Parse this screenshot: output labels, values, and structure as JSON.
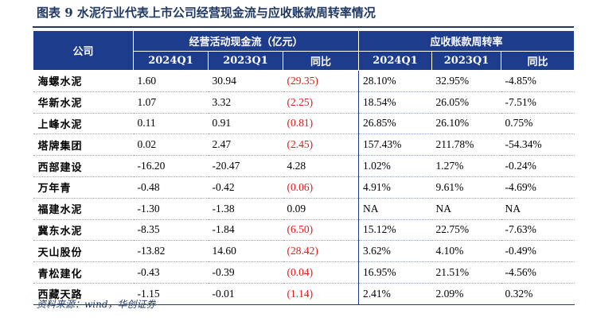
{
  "title": "图表 9  水泥行业代表上市公司经营现金流与应收账款周转率情况",
  "table": {
    "company_header": "公司",
    "group_headers": [
      "经营活动现金流（亿元）",
      "应收账款周转率"
    ],
    "sub_headers": [
      "2024Q1",
      "2023Q1",
      "同比",
      "2024Q1",
      "2023Q1",
      "同比"
    ],
    "rows": [
      {
        "company": "海螺水泥",
        "cf_2024": "1.60",
        "cf_2023": "30.94",
        "cf_yoy": "(29.35)",
        "cf_neg": true,
        "rt_2024": "28.10%",
        "rt_2023": "32.95%",
        "rt_yoy": "-4.85%"
      },
      {
        "company": "华新水泥",
        "cf_2024": "1.07",
        "cf_2023": "3.32",
        "cf_yoy": "(2.25)",
        "cf_neg": true,
        "rt_2024": "18.54%",
        "rt_2023": "26.05%",
        "rt_yoy": "-7.51%"
      },
      {
        "company": "上峰水泥",
        "cf_2024": "0.11",
        "cf_2023": "0.91",
        "cf_yoy": "(0.81)",
        "cf_neg": true,
        "rt_2024": "26.85%",
        "rt_2023": "26.10%",
        "rt_yoy": "0.75%"
      },
      {
        "company": "塔牌集团",
        "cf_2024": "0.02",
        "cf_2023": "2.47",
        "cf_yoy": "(2.45)",
        "cf_neg": true,
        "rt_2024": "157.43%",
        "rt_2023": "211.78%",
        "rt_yoy": "-54.34%"
      },
      {
        "company": "西部建设",
        "cf_2024": "-16.20",
        "cf_2023": "-20.47",
        "cf_yoy": "4.28",
        "cf_neg": false,
        "rt_2024": "1.02%",
        "rt_2023": "1.27%",
        "rt_yoy": "-0.24%"
      },
      {
        "company": "万年青",
        "cf_2024": "-0.48",
        "cf_2023": "-0.42",
        "cf_yoy": "(0.06)",
        "cf_neg": true,
        "rt_2024": "4.91%",
        "rt_2023": "9.61%",
        "rt_yoy": "-4.69%"
      },
      {
        "company": "福建水泥",
        "cf_2024": "-1.30",
        "cf_2023": "-1.38",
        "cf_yoy": "0.09",
        "cf_neg": false,
        "rt_2024": "NA",
        "rt_2023": "NA",
        "rt_yoy": "NA"
      },
      {
        "company": "冀东水泥",
        "cf_2024": "-8.35",
        "cf_2023": "-1.84",
        "cf_yoy": "(6.50)",
        "cf_neg": true,
        "rt_2024": "15.12%",
        "rt_2023": "22.75%",
        "rt_yoy": "-7.63%"
      },
      {
        "company": "天山股份",
        "cf_2024": "-13.82",
        "cf_2023": "14.60",
        "cf_yoy": "(28.42)",
        "cf_neg": true,
        "rt_2024": "3.62%",
        "rt_2023": "4.10%",
        "rt_yoy": "-0.49%"
      },
      {
        "company": "青松建化",
        "cf_2024": "-0.43",
        "cf_2023": "-0.39",
        "cf_yoy": "(0.04)",
        "cf_neg": true,
        "rt_2024": "16.95%",
        "rt_2023": "21.51%",
        "rt_yoy": "-4.56%"
      },
      {
        "company": "西藏天路",
        "cf_2024": "-1.15",
        "cf_2023": "-0.01",
        "cf_yoy": "(1.14)",
        "cf_neg": true,
        "rt_2024": "2.41%",
        "rt_2023": "2.09%",
        "rt_yoy": "0.32%"
      }
    ]
  },
  "source": "资料来源：wind，华创证券",
  "colors": {
    "header_bg": "#1e3c8c",
    "title": "#1f3864",
    "negative": "#e0191b"
  }
}
